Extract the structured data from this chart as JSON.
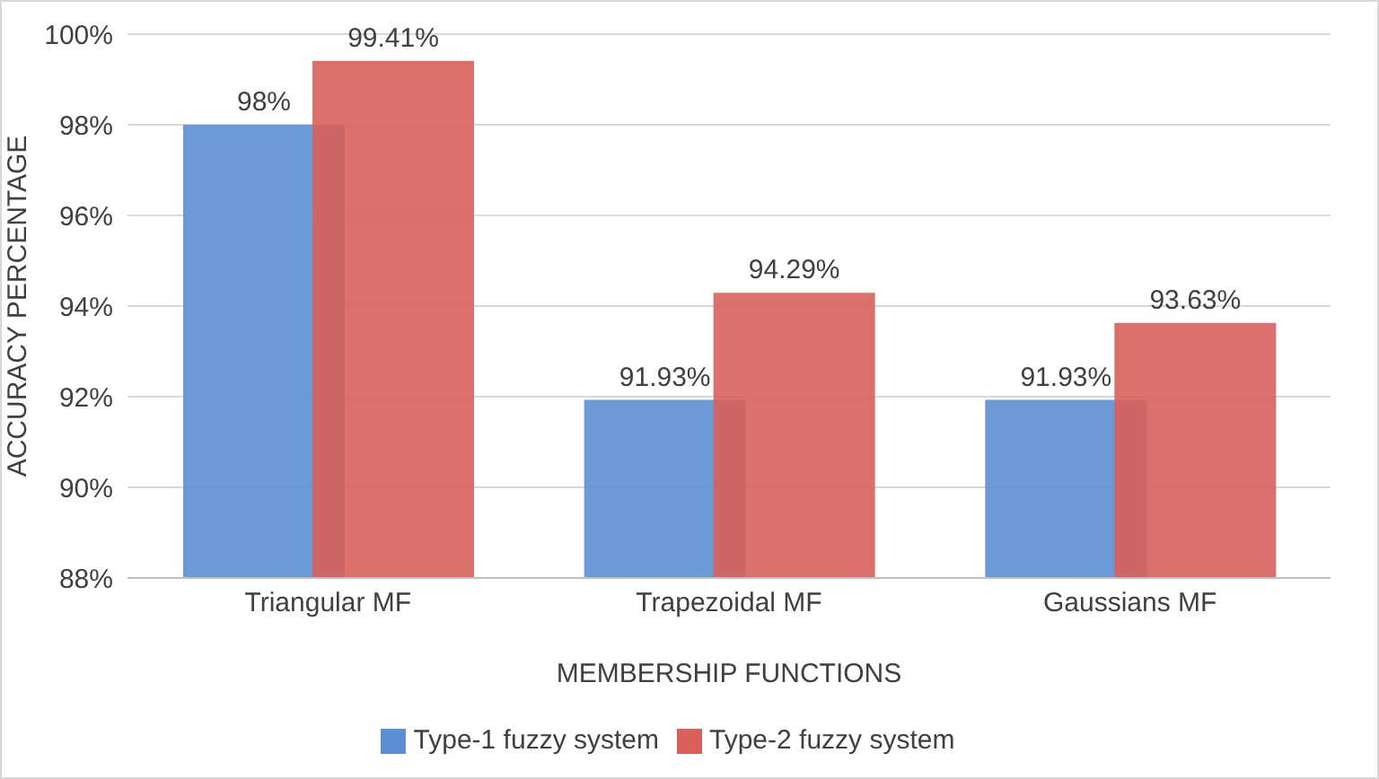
{
  "chart_data": {
    "type": "bar",
    "xlabel": "MEMBERSHIP FUNCTIONS",
    "ylabel": "ACCURACY PERCENTAGE",
    "categories": [
      "Triangular MF",
      "Trapezoidal MF",
      "Gaussians MF"
    ],
    "series": [
      {
        "name": "Type-1 fuzzy system",
        "color": "#5b8fd3",
        "values": [
          98,
          91.93,
          91.93
        ],
        "value_labels": [
          "98%",
          "91.93%",
          "91.93%"
        ]
      },
      {
        "name": "Type-2 fuzzy system",
        "color": "#d9605c",
        "values": [
          99.41,
          94.29,
          93.63
        ],
        "value_labels": [
          "99.41%",
          "94.29%",
          "93.63%"
        ]
      }
    ],
    "ylim": [
      88,
      100
    ],
    "yticks": [
      {
        "value": 88,
        "label": "88%"
      },
      {
        "value": 90,
        "label": "90%"
      },
      {
        "value": 92,
        "label": "92%"
      },
      {
        "value": 94,
        "label": "94%"
      },
      {
        "value": 96,
        "label": "96%"
      },
      {
        "value": 98,
        "label": "98%"
      },
      {
        "value": 100,
        "label": "100%"
      }
    ],
    "grid": "y",
    "legend": "bottom"
  }
}
